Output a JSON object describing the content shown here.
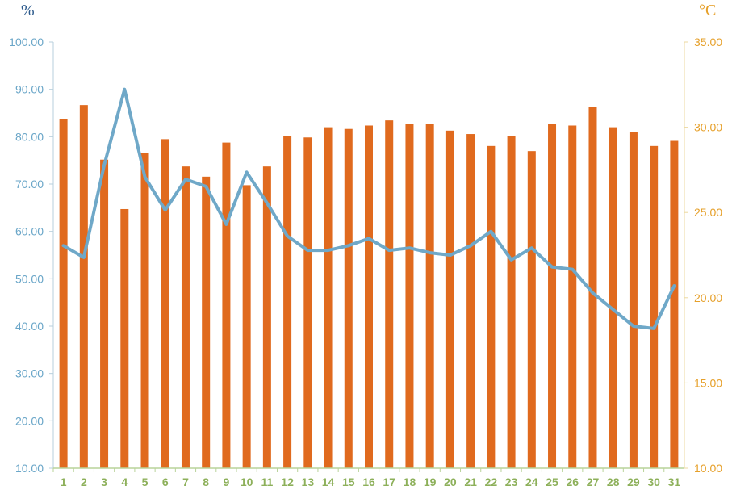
{
  "chart_data": {
    "type": "bar",
    "categories": [
      "1",
      "2",
      "3",
      "4",
      "5",
      "6",
      "7",
      "8",
      "9",
      "10",
      "11",
      "12",
      "13",
      "14",
      "15",
      "16",
      "17",
      "18",
      "19",
      "20",
      "21",
      "22",
      "23",
      "24",
      "25",
      "26",
      "27",
      "28",
      "29",
      "30",
      "31"
    ],
    "y_left": {
      "unit": "%",
      "range": [
        10,
        100
      ],
      "ticks": [
        "10.00",
        "20.00",
        "30.00",
        "40.00",
        "50.00",
        "60.00",
        "70.00",
        "80.00",
        "90.00",
        "100.00"
      ]
    },
    "y_right": {
      "unit": "°C",
      "range": [
        10,
        35
      ],
      "ticks": [
        "10.00",
        "15.00",
        "20.00",
        "25.00",
        "30.00",
        "35.00"
      ]
    },
    "series": [
      {
        "type": "bar",
        "axis": "right",
        "color": "#e06a1e",
        "values": [
          30.5,
          31.3,
          28.1,
          25.2,
          28.5,
          29.3,
          27.7,
          27.1,
          29.1,
          26.6,
          27.7,
          29.5,
          29.4,
          30.0,
          29.9,
          30.1,
          30.4,
          30.2,
          30.2,
          29.8,
          29.6,
          28.9,
          29.5,
          28.6,
          30.2,
          30.1,
          31.2,
          30.0,
          29.7,
          28.9,
          29.2
        ]
      },
      {
        "type": "line",
        "axis": "left",
        "color": "#6fa8c8",
        "values": [
          57,
          54.5,
          74,
          90,
          71.5,
          64.5,
          71,
          69.5,
          61.5,
          72.5,
          66,
          59,
          56,
          56,
          57,
          58.5,
          56,
          56.5,
          55.5,
          55,
          57,
          60,
          54,
          56.5,
          52.5,
          52,
          47,
          43.5,
          40,
          39.5,
          48.5
        ]
      }
    ],
    "grid": false,
    "legend": "none"
  }
}
